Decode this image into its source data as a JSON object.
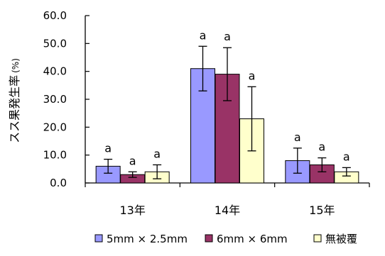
{
  "chart_data": {
    "type": "bar",
    "categories": [
      "13年",
      "14年",
      "15年"
    ],
    "series": [
      {
        "name": "5mm × 2.5mm",
        "values": [
          6.0,
          41.0,
          8.0
        ],
        "error": [
          2.5,
          8.0,
          4.5
        ],
        "significance": [
          "a",
          "a",
          "a"
        ],
        "color": "#9999ff"
      },
      {
        "name": "6mm × 6mm",
        "values": [
          3.0,
          39.0,
          6.5
        ],
        "error": [
          1.0,
          9.5,
          2.5
        ],
        "significance": [
          "a",
          "a",
          "a"
        ],
        "color": "#993366"
      },
      {
        "name": "無被覆",
        "values": [
          4.0,
          23.0,
          4.0
        ],
        "error": [
          2.5,
          11.5,
          1.5
        ],
        "significance": [
          "a",
          "a",
          "a"
        ],
        "color": "#ffffcc"
      }
    ],
    "ylabel": "スス果発生率",
    "ylabel_unit": "(%)",
    "ylim": [
      0,
      60
    ],
    "yticks": [
      "0.0",
      "10.0",
      "20.0",
      "30.0",
      "40.0",
      "50.0",
      "60.0"
    ],
    "grid": false,
    "legend_position": "bottom"
  }
}
